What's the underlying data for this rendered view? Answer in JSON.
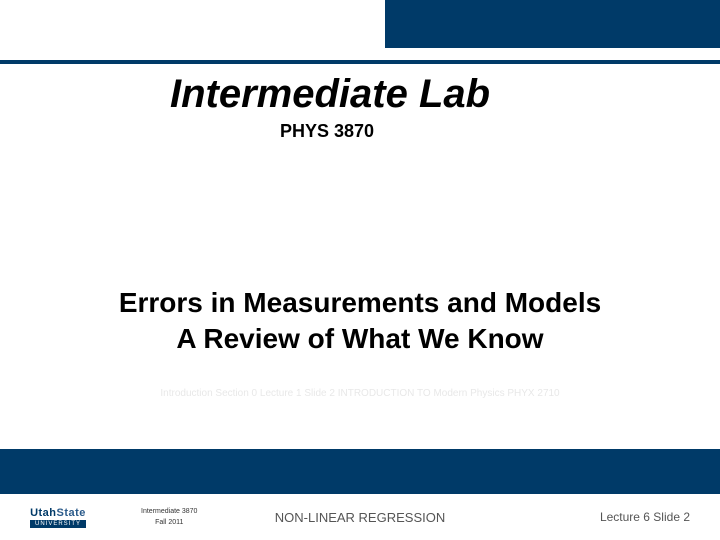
{
  "topBar": {
    "color": "#003a68"
  },
  "title": {
    "main": "Intermediate Lab",
    "sub": "PHYS 3870",
    "color": "#000000",
    "mainFontSize": 40,
    "subFontSize": 18
  },
  "subtitle": {
    "line1": "Errors in Measurements and Models",
    "line2": "A Review of What We Know",
    "fontSize": 28,
    "color": "#000000"
  },
  "introFaint": "Introduction Section 0 Lecture 1 Slide 2 INTRODUCTION TO Modern Physics PHYX 2710",
  "footer": {
    "logo": {
      "top1": "Utah",
      "top2": "State",
      "bottom": "UNIVERSITY"
    },
    "meta": {
      "line1": "Intermediate 3870",
      "line2": "Fall 2011"
    },
    "center": "NON-LINEAR REGRESSION",
    "right": "Lecture  6   Slide  2"
  },
  "colors": {
    "darkBlue": "#003a68",
    "background": "#ffffff",
    "footerText": "#555555"
  }
}
